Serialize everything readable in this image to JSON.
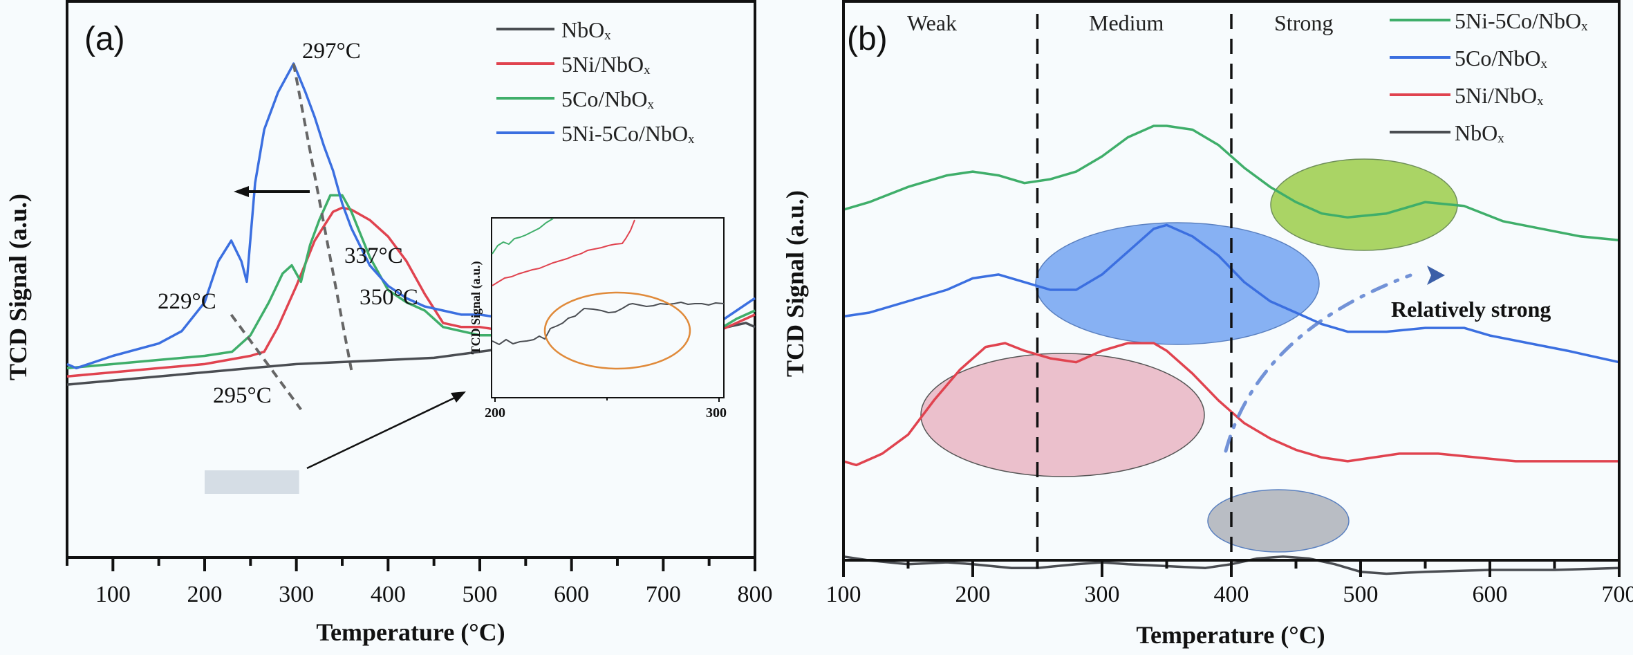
{
  "colors": {
    "NbOx": "#4a4d52",
    "5Ni/NbOx": "#e0434f",
    "5Co/NbOx": "#3fae6a",
    "5Ni-5Co/NbOx": "#3b6fe0",
    "b_5Ni-5Co/NbOx": "#3fae6a",
    "b_5Co/NbOx": "#3b6fe0",
    "b_5Ni/NbOx": "#e0434f",
    "b_NbOx": "#4a4d52",
    "ellipse_green": "#9ccc4a",
    "ellipse_blue": "#6a9ff0",
    "ellipse_pink": "#e6a6b6",
    "ellipse_gray": "#9ea3ab",
    "inset_ellipse": "#e08a3a",
    "dashdot_arrow": "#5a7fd0"
  },
  "chart_data": [
    {
      "id": "a",
      "type": "line",
      "panel_label": "(a)",
      "title": "",
      "xlabel": "Temperature (°C)",
      "ylabel": "TCD Signal (a.u.)",
      "xlim": [
        50,
        800
      ],
      "ylim": [
        0,
        100
      ],
      "xticks": [
        100,
        200,
        300,
        400,
        500,
        600,
        700,
        800
      ],
      "legend": [
        "NbOₓ",
        "5Ni/NbOₓ",
        "5Co/NbOₓ",
        "5Ni-5Co/NbOₓ"
      ],
      "legend_position": "top-right",
      "grid": false,
      "series": [
        {
          "name": "NbOx",
          "label": "NbOₓ",
          "x": [
            50,
            100,
            150,
            200,
            250,
            300,
            350,
            400,
            450,
            500,
            550,
            600,
            650,
            700,
            750,
            790,
            800
          ],
          "y": [
            42,
            43,
            44,
            45,
            46,
            47,
            47.5,
            48,
            48.5,
            50,
            51.5,
            53,
            54,
            54.5,
            55,
            57,
            56
          ]
        },
        {
          "name": "5Ni/NbOx",
          "label": "5Ni/NbOₓ",
          "x": [
            50,
            100,
            150,
            200,
            250,
            265,
            280,
            300,
            320,
            340,
            350,
            360,
            380,
            400,
            420,
            440,
            460,
            480,
            500,
            530,
            560,
            600,
            650,
            700,
            750,
            780,
            800
          ],
          "y": [
            44,
            45,
            46,
            47,
            49,
            50,
            56,
            66,
            77,
            84,
            85,
            84.5,
            82,
            78,
            72,
            64,
            57,
            56,
            56,
            55,
            54,
            53,
            53,
            53,
            54,
            57,
            59
          ]
        },
        {
          "name": "5Co/NbOx",
          "label": "5Co/NbOₓ",
          "x": [
            50,
            100,
            150,
            200,
            230,
            250,
            270,
            285,
            295,
            305,
            315,
            325,
            337,
            350,
            360,
            380,
            400,
            420,
            440,
            460,
            480,
            500,
            550,
            600,
            650,
            700,
            750,
            780,
            800
          ],
          "y": [
            46,
            47,
            48,
            49,
            50,
            54,
            62,
            69,
            71,
            67,
            76,
            82,
            88,
            88,
            84,
            73,
            65,
            62,
            60,
            56,
            55,
            54,
            54,
            53,
            53,
            53,
            54,
            58,
            60
          ]
        },
        {
          "name": "5Ni-5Co/NbOx",
          "label": "5Ni-5Co/NbOₓ",
          "x": [
            50,
            60,
            100,
            150,
            175,
            200,
            215,
            229,
            240,
            246,
            255,
            265,
            280,
            297,
            310,
            320,
            330,
            340,
            350,
            360,
            380,
            400,
            420,
            440,
            460,
            480,
            500,
            530,
            560,
            600,
            650,
            700,
            740,
            760,
            780,
            800
          ],
          "y": [
            47,
            46,
            49,
            52,
            55,
            62,
            72,
            77,
            72,
            67,
            91,
            104,
            113,
            120,
            113,
            107,
            100,
            94,
            86,
            80,
            71,
            66,
            63,
            61,
            60,
            59,
            59,
            58,
            57,
            56,
            55,
            55,
            55,
            57,
            60,
            63
          ]
        }
      ],
      "annotations": [
        "297°C",
        "337°C",
        "350°C",
        "229°C",
        "295°C"
      ],
      "inset": {
        "xlim": [
          200,
          300
        ],
        "xticks": [
          200,
          300
        ],
        "ylabel": "TCD Signal (a.u.)",
        "note": "zoom of 200-300 °C region highlighting NbOx shoulder"
      }
    },
    {
      "id": "b",
      "type": "line",
      "panel_label": "(b)",
      "title": "",
      "xlabel": "Temperature (°C)",
      "ylabel": "TCD Signal (a.u.)",
      "xlim": [
        100,
        700
      ],
      "ylim": [
        0,
        100
      ],
      "xticks": [
        100,
        200,
        300,
        400,
        500,
        600,
        700
      ],
      "region_boundaries": [
        250,
        400
      ],
      "regions": [
        "Weak",
        "Medium",
        "Strong"
      ],
      "legend": [
        "5Ni-5Co/NbOₓ",
        "5Co/NbOₓ",
        "5Ni/NbOₓ",
        "NbOₓ"
      ],
      "legend_position": "top-right",
      "grid": false,
      "annotations": [
        "Relatively strong"
      ],
      "series": [
        {
          "name": "5Ni-5Co/NbOx",
          "label": "5Ni-5Co/NbOₓ",
          "x": [
            100,
            120,
            150,
            180,
            200,
            220,
            240,
            260,
            280,
            300,
            320,
            340,
            350,
            370,
            390,
            410,
            430,
            450,
            470,
            490,
            520,
            550,
            580,
            610,
            640,
            670,
            700
          ],
          "y": [
            72,
            74,
            78,
            81,
            82,
            81,
            79,
            80,
            82,
            86,
            91,
            94,
            94,
            93,
            89,
            83,
            78,
            74,
            71,
            70,
            71,
            74,
            73,
            69,
            67,
            65,
            64
          ]
        },
        {
          "name": "5Co/NbOx",
          "label": "5Co/NbOₓ",
          "x": [
            100,
            120,
            150,
            180,
            200,
            220,
            240,
            260,
            280,
            300,
            320,
            340,
            350,
            370,
            390,
            410,
            430,
            450,
            470,
            490,
            520,
            550,
            580,
            600,
            630,
            660,
            700
          ],
          "y": [
            44,
            45,
            48,
            51,
            54,
            55,
            53,
            51,
            51,
            55,
            61,
            67,
            68,
            65,
            60,
            53,
            48,
            45,
            42,
            40,
            40,
            41,
            41,
            39,
            37,
            35,
            32
          ]
        },
        {
          "name": "5Ni/NbOx",
          "label": "5Ni/NbOₓ",
          "x": [
            100,
            110,
            130,
            150,
            170,
            190,
            210,
            225,
            240,
            260,
            280,
            300,
            320,
            340,
            350,
            370,
            390,
            410,
            430,
            450,
            470,
            490,
            510,
            530,
            560,
            590,
            620,
            660,
            700
          ],
          "y": [
            6,
            5,
            8,
            13,
            22,
            30,
            36,
            37,
            35,
            33,
            32,
            35,
            37,
            37,
            35,
            29,
            22,
            16,
            12,
            9,
            7,
            6,
            7,
            8,
            8,
            7,
            6,
            6,
            6
          ]
        },
        {
          "name": "NbOx",
          "label": "NbOₓ",
          "x": [
            100,
            120,
            150,
            180,
            200,
            230,
            250,
            280,
            300,
            320,
            350,
            380,
            400,
            420,
            440,
            460,
            480,
            500,
            520,
            550,
            600,
            650,
            700
          ],
          "y": [
            -19,
            -20,
            -21,
            -20.5,
            -21,
            -22,
            -22,
            -21,
            -20.5,
            -21,
            -21.5,
            -22,
            -21,
            -19.5,
            -19,
            -19.5,
            -21,
            -23,
            -23.5,
            -23,
            -22.5,
            -22.5,
            -22
          ]
        }
      ]
    }
  ]
}
